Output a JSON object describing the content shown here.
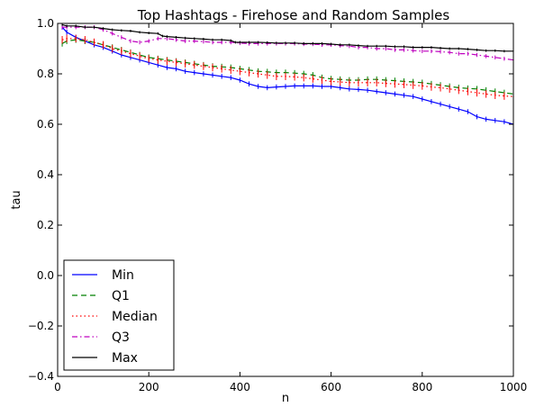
{
  "chart_data": {
    "type": "line",
    "title": "Top Hashtags - Firehose and Random Samples",
    "xlabel": "n",
    "ylabel": "tau",
    "xlim": [
      0,
      1000
    ],
    "ylim": [
      -0.4,
      1.0
    ],
    "xticks": [
      0,
      200,
      400,
      600,
      800,
      1000
    ],
    "xtick_labels": [
      "0",
      "200",
      "400",
      "600",
      "800",
      "1000"
    ],
    "yticks": [
      -0.4,
      -0.2,
      0.0,
      0.2,
      0.4,
      0.6,
      0.8,
      1.0
    ],
    "ytick_labels": [
      "−0.4",
      "−0.2",
      "0.0",
      "0.2",
      "0.4",
      "0.6",
      "0.8",
      "1.0"
    ],
    "grid": false,
    "legend_position": "lower-left",
    "error_bars": true,
    "series": [
      {
        "name": "Min",
        "color": "#0000ff",
        "style": "solid",
        "x": [
          10,
          20,
          40,
          60,
          80,
          100,
          120,
          140,
          160,
          180,
          200,
          220,
          240,
          260,
          280,
          300,
          320,
          340,
          360,
          380,
          400,
          420,
          440,
          460,
          480,
          500,
          520,
          540,
          560,
          580,
          600,
          620,
          640,
          660,
          680,
          700,
          720,
          740,
          760,
          780,
          800,
          820,
          840,
          860,
          880,
          900,
          920,
          940,
          960,
          980,
          1000
        ],
        "y": [
          0.985,
          0.965,
          0.945,
          0.93,
          0.915,
          0.905,
          0.89,
          0.875,
          0.865,
          0.855,
          0.845,
          0.835,
          0.825,
          0.82,
          0.81,
          0.805,
          0.8,
          0.795,
          0.79,
          0.785,
          0.775,
          0.76,
          0.75,
          0.745,
          0.748,
          0.75,
          0.752,
          0.752,
          0.752,
          0.75,
          0.75,
          0.745,
          0.74,
          0.738,
          0.735,
          0.73,
          0.725,
          0.72,
          0.715,
          0.71,
          0.7,
          0.69,
          0.68,
          0.67,
          0.66,
          0.65,
          0.63,
          0.62,
          0.615,
          0.61,
          0.6
        ],
        "err": 0.01
      },
      {
        "name": "Q1",
        "color": "#008000",
        "style": "dashed",
        "x": [
          10,
          20,
          40,
          60,
          80,
          100,
          120,
          140,
          160,
          180,
          200,
          220,
          240,
          260,
          280,
          300,
          320,
          340,
          360,
          380,
          400,
          420,
          440,
          460,
          480,
          500,
          520,
          540,
          560,
          580,
          600,
          620,
          640,
          660,
          680,
          700,
          720,
          740,
          760,
          780,
          800,
          820,
          840,
          860,
          880,
          900,
          920,
          940,
          960,
          980,
          1000
        ],
        "y": [
          0.92,
          0.93,
          0.935,
          0.93,
          0.925,
          0.915,
          0.905,
          0.895,
          0.885,
          0.875,
          0.865,
          0.86,
          0.855,
          0.85,
          0.845,
          0.84,
          0.835,
          0.83,
          0.828,
          0.825,
          0.82,
          0.815,
          0.81,
          0.808,
          0.805,
          0.805,
          0.803,
          0.8,
          0.795,
          0.785,
          0.78,
          0.778,
          0.775,
          0.775,
          0.778,
          0.778,
          0.775,
          0.773,
          0.77,
          0.768,
          0.765,
          0.76,
          0.755,
          0.75,
          0.745,
          0.742,
          0.74,
          0.735,
          0.73,
          0.725,
          0.72
        ],
        "err": 0.012
      },
      {
        "name": "Median",
        "color": "#ff0000",
        "style": "dotted",
        "x": [
          10,
          20,
          40,
          60,
          80,
          100,
          120,
          140,
          160,
          180,
          200,
          220,
          240,
          260,
          280,
          300,
          320,
          340,
          360,
          380,
          400,
          420,
          440,
          460,
          480,
          500,
          520,
          540,
          560,
          580,
          600,
          620,
          640,
          660,
          680,
          700,
          720,
          740,
          760,
          780,
          800,
          820,
          840,
          860,
          880,
          900,
          920,
          940,
          960,
          980,
          1000
        ],
        "y": [
          0.935,
          0.94,
          0.94,
          0.935,
          0.925,
          0.915,
          0.9,
          0.89,
          0.88,
          0.87,
          0.86,
          0.855,
          0.85,
          0.845,
          0.84,
          0.835,
          0.83,
          0.825,
          0.82,
          0.815,
          0.81,
          0.805,
          0.8,
          0.795,
          0.79,
          0.79,
          0.788,
          0.785,
          0.78,
          0.775,
          0.77,
          0.768,
          0.765,
          0.765,
          0.765,
          0.765,
          0.762,
          0.76,
          0.758,
          0.755,
          0.752,
          0.748,
          0.745,
          0.74,
          0.735,
          0.73,
          0.725,
          0.72,
          0.715,
          0.712,
          0.71
        ],
        "err": 0.015
      },
      {
        "name": "Q3",
        "color": "#bf00bf",
        "style": "dashdot",
        "x": [
          10,
          20,
          40,
          60,
          80,
          100,
          120,
          140,
          160,
          180,
          200,
          220,
          240,
          260,
          280,
          300,
          320,
          340,
          360,
          380,
          400,
          420,
          440,
          460,
          480,
          500,
          520,
          540,
          560,
          580,
          600,
          620,
          640,
          660,
          680,
          700,
          720,
          740,
          760,
          780,
          800,
          820,
          840,
          860,
          880,
          900,
          920,
          940,
          960,
          980,
          1000
        ],
        "y": [
          0.985,
          0.985,
          0.985,
          0.985,
          0.985,
          0.975,
          0.96,
          0.945,
          0.93,
          0.925,
          0.93,
          0.94,
          0.94,
          0.935,
          0.93,
          0.93,
          0.928,
          0.925,
          0.925,
          0.925,
          0.922,
          0.92,
          0.92,
          0.92,
          0.92,
          0.92,
          0.92,
          0.918,
          0.918,
          0.915,
          0.915,
          0.912,
          0.91,
          0.905,
          0.905,
          0.9,
          0.9,
          0.895,
          0.895,
          0.892,
          0.89,
          0.89,
          0.888,
          0.885,
          0.88,
          0.88,
          0.875,
          0.87,
          0.865,
          0.86,
          0.855
        ],
        "err": 0.008
      },
      {
        "name": "Max",
        "color": "#000000",
        "style": "solid",
        "x": [
          10,
          20,
          40,
          60,
          80,
          100,
          120,
          140,
          160,
          180,
          200,
          220,
          230,
          240,
          260,
          280,
          300,
          320,
          340,
          360,
          380,
          390,
          400,
          420,
          440,
          460,
          480,
          500,
          520,
          540,
          560,
          580,
          600,
          620,
          640,
          660,
          680,
          700,
          720,
          740,
          760,
          780,
          800,
          820,
          840,
          860,
          880,
          900,
          920,
          940,
          960,
          980,
          1000
        ],
        "y": [
          0.995,
          0.99,
          0.99,
          0.985,
          0.985,
          0.98,
          0.975,
          0.972,
          0.97,
          0.965,
          0.962,
          0.96,
          0.95,
          0.948,
          0.945,
          0.942,
          0.94,
          0.938,
          0.935,
          0.935,
          0.932,
          0.925,
          0.925,
          0.925,
          0.925,
          0.924,
          0.922,
          0.922,
          0.922,
          0.92,
          0.92,
          0.92,
          0.918,
          0.915,
          0.915,
          0.912,
          0.91,
          0.91,
          0.91,
          0.908,
          0.908,
          0.905,
          0.905,
          0.905,
          0.902,
          0.9,
          0.9,
          0.898,
          0.895,
          0.892,
          0.892,
          0.89,
          0.89
        ],
        "err": 0.005
      }
    ]
  }
}
